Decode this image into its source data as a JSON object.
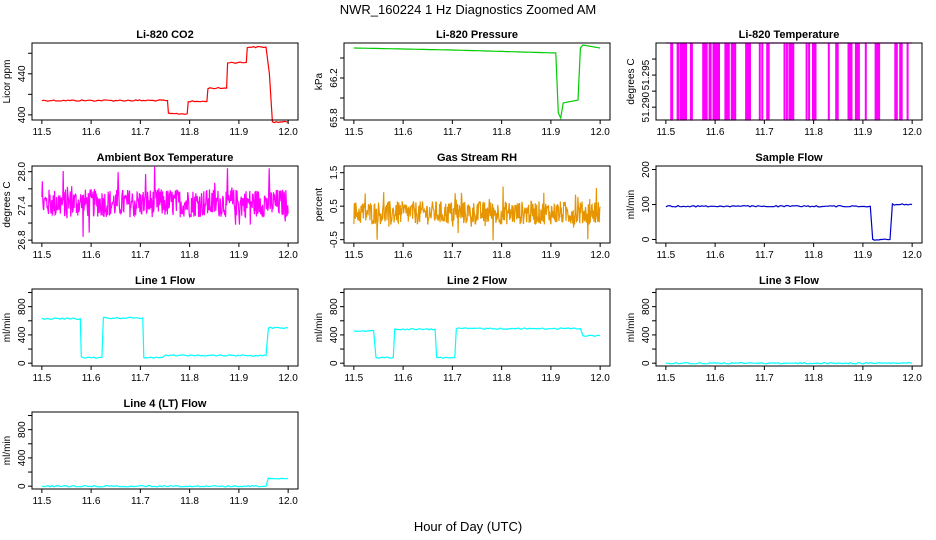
{
  "figure": {
    "title": "NWR_160224  1 Hz Diagnostics Zoomed AM",
    "xlabel": "Hour of Day (UTC)"
  },
  "chart_data": [
    {
      "type": "line",
      "title": "Li-820 CO2",
      "ylabel": "Licor ppm",
      "color": "#ff0000",
      "xlim": [
        11.5,
        12.0
      ],
      "ylim": [
        395,
        470
      ],
      "yticks": [
        400,
        420,
        440,
        460
      ],
      "ytick_labels": [
        "400",
        "",
        "440",
        ""
      ],
      "x": [
        11.5,
        11.755,
        11.757,
        11.795,
        11.797,
        11.835,
        11.837,
        11.875,
        11.877,
        11.915,
        11.917,
        11.955,
        11.962,
        11.968,
        12.0
      ],
      "series": [
        {
          "values": [
            414,
            414,
            401,
            401,
            413,
            413,
            426,
            426,
            451,
            451,
            466,
            466,
            440,
            393,
            393
          ]
        }
      ]
    },
    {
      "type": "line",
      "title": "Li-820 Pressure",
      "ylabel": "kPa",
      "color": "#00cc00",
      "xlim": [
        11.5,
        12.0
      ],
      "ylim": [
        65.78,
        66.55
      ],
      "yticks": [
        65.8,
        66.0,
        66.2,
        66.4
      ],
      "ytick_labels": [
        "65.8",
        "",
        "66.2",
        ""
      ],
      "x": [
        11.5,
        11.7,
        11.91,
        11.915,
        11.92,
        11.925,
        11.955,
        11.96,
        11.965,
        12.0
      ],
      "series": [
        {
          "values": [
            66.5,
            66.48,
            66.45,
            65.85,
            65.8,
            65.95,
            65.98,
            66.5,
            66.53,
            66.5
          ]
        }
      ]
    },
    {
      "type": "line",
      "title": "Li-820 Temperature",
      "ylabel": "degrees C",
      "color": "#ff00ff",
      "xlim": [
        11.5,
        12.0
      ],
      "ylim": [
        51.288,
        51.3
      ],
      "yticks": [
        51.29,
        51.2925,
        51.295,
        51.2975
      ],
      "ytick_labels": [
        "51.290",
        "",
        "51.295",
        ""
      ],
      "series": [
        {
          "values": [
            51.3
          ],
          "low_value": 51.288
        }
      ],
      "drop_x": [
        11.51,
        11.512,
        11.523,
        11.525,
        11.53,
        11.534,
        11.537,
        11.54,
        11.55,
        11.552,
        11.575,
        11.578,
        11.582,
        11.588,
        11.59,
        11.596,
        11.6,
        11.603,
        11.607,
        11.62,
        11.623,
        11.627,
        11.633,
        11.636,
        11.64,
        11.662,
        11.665,
        11.668,
        11.67,
        11.69,
        11.695,
        11.705,
        11.708,
        11.74,
        11.745,
        11.75,
        11.753,
        11.755,
        11.758,
        11.785,
        11.79,
        11.798,
        11.8,
        11.803,
        11.83,
        11.845,
        11.848,
        11.87,
        11.873,
        11.876,
        11.885,
        11.888,
        11.891,
        11.905,
        11.925,
        11.928,
        11.93,
        11.932,
        11.965,
        11.968,
        11.975,
        11.978,
        11.99
      ]
    },
    {
      "type": "line",
      "title": "Ambient Box Temperature",
      "ylabel": "degrees C",
      "color": "#ff00ff",
      "xlim": [
        11.5,
        12.0
      ],
      "ylim": [
        26.75,
        28.1
      ],
      "yticks": [
        26.8,
        27.1,
        27.4,
        27.7,
        28.0
      ],
      "ytick_labels": [
        "26.8",
        "",
        "27.4",
        "",
        "28.0"
      ],
      "series": [
        {
          "values": [
            27.45
          ],
          "noise": 0.25
        }
      ]
    },
    {
      "type": "line",
      "title": "Gas Stream RH",
      "ylabel": "percent",
      "color": "#e69500",
      "xlim": [
        11.5,
        12.0
      ],
      "ylim": [
        -0.6,
        1.7
      ],
      "yticks": [
        -0.5,
        0,
        0.5,
        1.0,
        1.5
      ],
      "ytick_labels": [
        "-0.5",
        "",
        "0.5",
        "",
        "1.5"
      ],
      "series": [
        {
          "values": [
            0.3
          ],
          "noise": 0.35
        }
      ]
    },
    {
      "type": "line",
      "title": "Sample Flow",
      "ylabel": "ml/min",
      "color": "#0000cc",
      "xlim": [
        11.5,
        12.0
      ],
      "ylim": [
        -10,
        210
      ],
      "yticks": [
        0,
        100,
        200
      ],
      "ytick_labels": [
        "0",
        "100",
        "200"
      ],
      "x": [
        11.5,
        11.915,
        11.92,
        11.955,
        11.96,
        12.0
      ],
      "series": [
        {
          "values": [
            95,
            95,
            0,
            0,
            100,
            100
          ]
        }
      ]
    },
    {
      "type": "line",
      "title": "Line 1 Flow",
      "ylabel": "ml/min",
      "color": "#00ffff",
      "xlim": [
        11.5,
        12.0
      ],
      "ylim": [
        -40,
        1050
      ],
      "yticks": [
        0,
        200,
        400,
        600,
        800,
        1000
      ],
      "ytick_labels": [
        "0",
        "",
        "400",
        "",
        "800",
        ""
      ],
      "x": [
        11.5,
        11.578,
        11.58,
        11.622,
        11.625,
        11.705,
        11.707,
        11.745,
        11.748,
        11.955,
        11.96,
        12.0
      ],
      "series": [
        {
          "values": [
            630,
            630,
            80,
            80,
            640,
            640,
            80,
            80,
            110,
            110,
            500,
            500
          ]
        }
      ]
    },
    {
      "type": "line",
      "title": "Line 2 Flow",
      "ylabel": "ml/min",
      "color": "#00ffff",
      "xlim": [
        11.5,
        12.0
      ],
      "ylim": [
        -40,
        1050
      ],
      "yticks": [
        0,
        200,
        400,
        600,
        800,
        1000
      ],
      "ytick_labels": [
        "0",
        "",
        "400",
        "",
        "800",
        ""
      ],
      "x": [
        11.5,
        11.54,
        11.545,
        11.58,
        11.583,
        11.665,
        11.668,
        11.705,
        11.708,
        11.96,
        11.965,
        12.0
      ],
      "series": [
        {
          "values": [
            460,
            460,
            80,
            80,
            480,
            480,
            80,
            80,
            490,
            490,
            390,
            390
          ]
        }
      ]
    },
    {
      "type": "line",
      "title": "Line 3 Flow",
      "ylabel": "ml/min",
      "color": "#00ffff",
      "xlim": [
        11.5,
        12.0
      ],
      "ylim": [
        -40,
        1050
      ],
      "yticks": [
        0,
        200,
        400,
        600,
        800,
        1000
      ],
      "ytick_labels": [
        "0",
        "",
        "400",
        "",
        "800",
        ""
      ],
      "x": [
        11.5,
        12.0
      ],
      "series": [
        {
          "values": [
            0,
            0
          ]
        }
      ]
    },
    {
      "type": "line",
      "title": "Line 4 (LT) Flow",
      "ylabel": "ml/min",
      "color": "#00ffff",
      "xlim": [
        11.5,
        12.0
      ],
      "ylim": [
        -40,
        1050
      ],
      "yticks": [
        0,
        200,
        400,
        600,
        800,
        1000
      ],
      "ytick_labels": [
        "0",
        "",
        "400",
        "",
        "800",
        ""
      ],
      "x": [
        11.5,
        11.955,
        11.96,
        12.0
      ],
      "series": [
        {
          "values": [
            0,
            0,
            110,
            110
          ]
        }
      ]
    }
  ],
  "xticks": [
    11.5,
    11.6,
    11.7,
    11.8,
    11.9,
    12.0
  ],
  "xtick_labels": [
    "11.5",
    "11.6",
    "11.7",
    "11.8",
    "11.9",
    "12.0"
  ]
}
